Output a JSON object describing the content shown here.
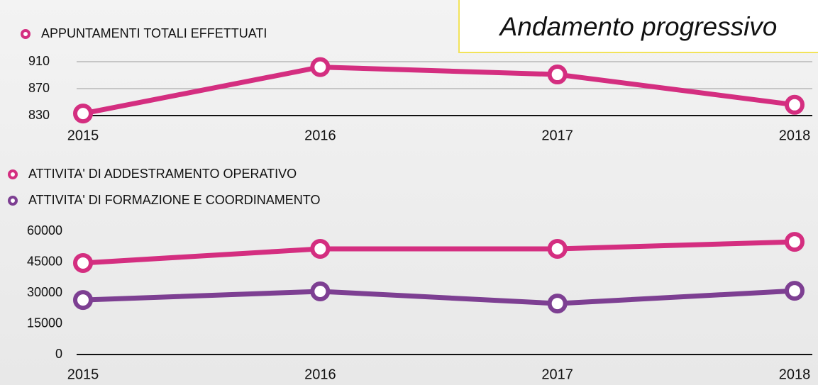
{
  "title": "Andamento progressivo",
  "chart_data": [
    {
      "type": "line",
      "categories": [
        "2015",
        "2016",
        "2017",
        "2018"
      ],
      "series": [
        {
          "name": "APPUNTAMENTI TOTALI EFFETTUATI",
          "color": "#d42e80",
          "values": [
            833,
            902,
            891,
            846
          ]
        }
      ],
      "ylim": [
        830,
        910
      ],
      "yticks": [
        830,
        870,
        910
      ],
      "grid": true
    },
    {
      "type": "line",
      "categories": [
        "2015",
        "2016",
        "2017",
        "2018"
      ],
      "series": [
        {
          "name": "ATTIVITA' DI ADDESTRAMENTO OPERATIVO",
          "color": "#d42e80",
          "values": [
            44500,
            51400,
            51400,
            54800
          ]
        },
        {
          "name": "ATTIVITA' DI FORMAZIONE E COORDINAMENTO",
          "color": "#7d3f92",
          "values": [
            26500,
            30700,
            24800,
            31000
          ]
        }
      ],
      "ylim": [
        0,
        60000
      ],
      "yticks": [
        0,
        15000,
        30000,
        45000,
        60000
      ],
      "grid": false
    }
  ]
}
